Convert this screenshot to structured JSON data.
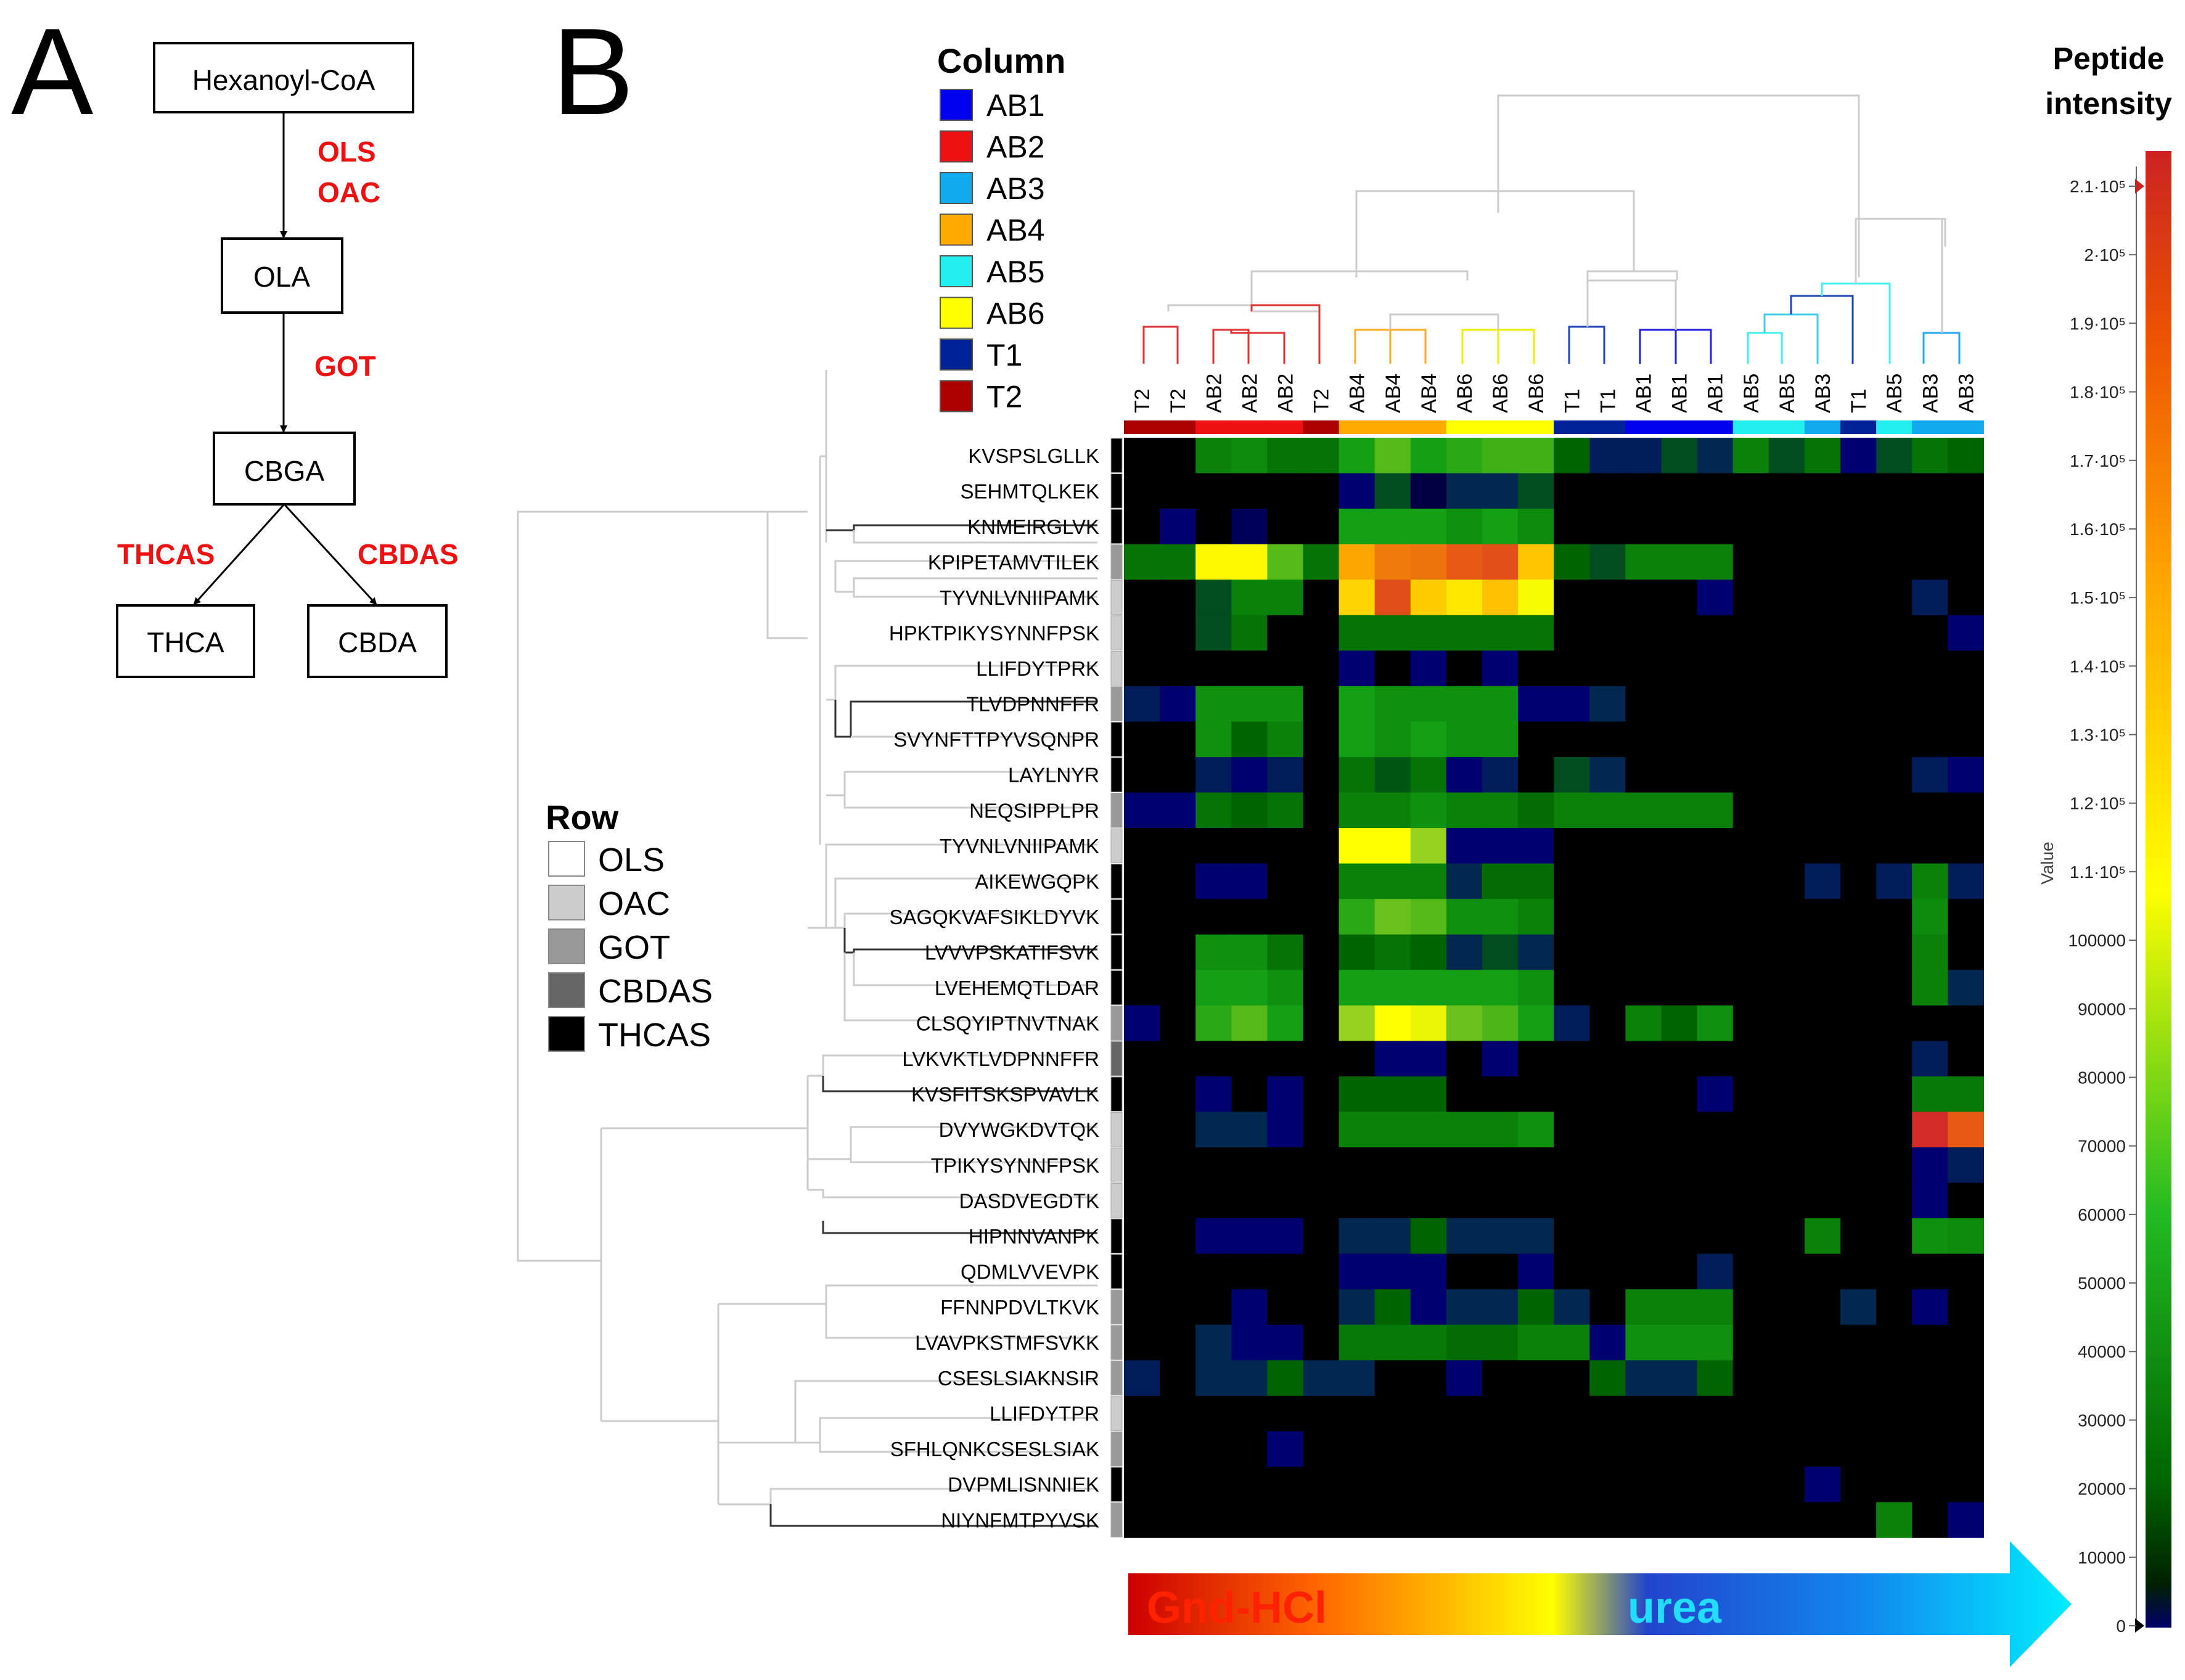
{
  "panel_a": {
    "label": "A",
    "nodes": [
      "Hexanoyl-CoA",
      "OLA",
      "CBGA",
      "THCA",
      "CBDA"
    ],
    "enzymes": {
      "e1": "OLS",
      "e2": "OAC",
      "e3": "GOT",
      "e4": "THCAS",
      "e5": "CBDAS"
    },
    "enzyme_color": "#ee1111"
  },
  "panel_b": {
    "label": "B",
    "column_legend": {
      "title": "Column",
      "items": [
        {
          "label": "AB1",
          "color": "#0000ee"
        },
        {
          "label": "AB2",
          "color": "#ee1111"
        },
        {
          "label": "AB3",
          "color": "#11aaee"
        },
        {
          "label": "AB4",
          "color": "#ffaa00"
        },
        {
          "label": "AB5",
          "color": "#22eeee"
        },
        {
          "label": "AB6",
          "color": "#ffff00"
        },
        {
          "label": "T1",
          "color": "#002299"
        },
        {
          "label": "T2",
          "color": "#aa0000"
        }
      ]
    },
    "row_legend": {
      "title": "Row",
      "items": [
        {
          "label": "OLS",
          "color": "#ffffff"
        },
        {
          "label": "OAC",
          "color": "#cccccc"
        },
        {
          "label": "GOT",
          "color": "#999999"
        },
        {
          "label": "CBDAS",
          "color": "#666666"
        },
        {
          "label": "THCAS",
          "color": "#000000"
        }
      ]
    },
    "scale_title_1": "Peptide",
    "scale_title_2": "intensity",
    "scale_side_label": "Value",
    "arrow_left": "Gnd-HCl",
    "arrow_right": "urea"
  },
  "chart_data": {
    "type": "heatmap",
    "title": "Peptide intensity",
    "columns": [
      "T2",
      "T2",
      "AB2",
      "AB2",
      "AB2",
      "T2",
      "AB4",
      "AB4",
      "AB4",
      "AB6",
      "AB6",
      "AB6",
      "T1",
      "T1",
      "AB1",
      "AB1",
      "AB1",
      "AB5",
      "AB5",
      "AB3",
      "T1",
      "AB5",
      "AB3",
      "AB3"
    ],
    "rows": [
      "KVSPSLGLLK",
      "SEHMTQLKEK",
      "KNMEIRGLVK",
      "KPIPETAMVTILEK",
      "TYVNLVNIIPAMK",
      "HPKTPIKYSYNNFPSK",
      "LLIFDYTPRK",
      "TLVDPNNFFR",
      "SVYNFTTPYVSQNPR",
      "LAYLNYR",
      "NEQSIPPLPR",
      "TYVNLVNIIPAMK",
      "AIKEWGQPK",
      "SAGQKVAFSIKLDYVK",
      "LVVVPSKATIFSVK",
      "LVEHEMQTLDAR",
      "CLSQYIPTNVTNAK",
      "LVKVKTLVDPNNFFR",
      "KVSFITSKSPVAVLK",
      "DVYWGKDVTQK",
      "TPIKYSYNNFPSK",
      "DASDVEGDTK",
      "HIPNNVANPK",
      "QDMLVVEVPK",
      "FFNNPDVLTKVK",
      "LVAVPKSTMFSVKK",
      "CSESLSIAKNSIR",
      "LLIFDYTPR",
      "SFHLQNKCSESLSIAK",
      "DVPMLISNNIEK",
      "NIYNFMTPYVSK"
    ],
    "row_groups": [
      "THCAS",
      "THCAS",
      "THCAS",
      "GOT",
      "OAC",
      "OAC",
      "OAC",
      "GOT",
      "THCAS",
      "THCAS",
      "GOT",
      "OAC",
      "THCAS",
      "THCAS",
      "THCAS",
      "THCAS",
      "GOT",
      "CBDAS",
      "THCAS",
      "OAC",
      "OAC",
      "OAC",
      "THCAS",
      "THCAS",
      "GOT",
      "GOT",
      "GOT",
      "OAC",
      "GOT",
      "THCAS",
      "GOT"
    ],
    "values": [
      [
        0,
        0,
        35000,
        38000,
        30000,
        30000,
        45000,
        60000,
        45000,
        50000,
        55000,
        55000,
        25000,
        10000,
        10000,
        20000,
        12000,
        35000,
        20000,
        30000,
        5000,
        20000,
        30000,
        25000
      ],
      [
        0,
        0,
        0,
        0,
        0,
        0,
        5000,
        20000,
        3000,
        12000,
        12000,
        20000,
        0,
        0,
        0,
        0,
        0,
        0,
        0,
        0,
        0,
        0,
        0,
        0
      ],
      [
        0,
        5000,
        0,
        4000,
        0,
        0,
        45000,
        45000,
        45000,
        40000,
        45000,
        38000,
        0,
        0,
        0,
        0,
        0,
        0,
        0,
        0,
        0,
        0,
        0,
        0
      ],
      [
        30000,
        30000,
        102000,
        102000,
        60000,
        30000,
        132000,
        148000,
        150000,
        160000,
        166000,
        120000,
        25000,
        20000,
        35000,
        35000,
        35000,
        0,
        0,
        0,
        0,
        0,
        0,
        0
      ],
      [
        0,
        0,
        20000,
        35000,
        35000,
        0,
        115000,
        168000,
        118000,
        108000,
        122000,
        98000,
        0,
        0,
        0,
        0,
        5000,
        0,
        0,
        0,
        0,
        0,
        10000,
        0
      ],
      [
        0,
        0,
        20000,
        30000,
        0,
        0,
        30000,
        30000,
        30000,
        30000,
        30000,
        30000,
        0,
        0,
        0,
        0,
        0,
        0,
        0,
        0,
        0,
        0,
        0,
        5000
      ],
      [
        0,
        0,
        0,
        0,
        0,
        0,
        5000,
        0,
        5000,
        0,
        5000,
        0,
        0,
        0,
        0,
        0,
        0,
        0,
        0,
        0,
        0,
        0,
        0,
        0
      ],
      [
        10000,
        5000,
        40000,
        40000,
        40000,
        0,
        45000,
        40000,
        40000,
        40000,
        40000,
        5000,
        5000,
        12000,
        0,
        0,
        0,
        0,
        0,
        0,
        0,
        0,
        0,
        0
      ],
      [
        0,
        0,
        40000,
        25000,
        35000,
        0,
        45000,
        40000,
        45000,
        40000,
        40000,
        0,
        0,
        0,
        0,
        0,
        0,
        0,
        0,
        0,
        0,
        0,
        0,
        0
      ],
      [
        0,
        0,
        10000,
        5000,
        10000,
        0,
        30000,
        22000,
        30000,
        5000,
        10000,
        0,
        20000,
        12000,
        0,
        0,
        0,
        0,
        0,
        0,
        0,
        0,
        10000,
        5000
      ],
      [
        5000,
        5000,
        30000,
        25000,
        30000,
        0,
        35000,
        35000,
        40000,
        35000,
        35000,
        28000,
        35000,
        35000,
        35000,
        35000,
        35000,
        0,
        0,
        0,
        0,
        0,
        0,
        0
      ],
      [
        0,
        0,
        0,
        0,
        0,
        0,
        100000,
        100000,
        75000,
        5000,
        5000,
        5000,
        0,
        0,
        0,
        0,
        0,
        0,
        0,
        0,
        0,
        0,
        0,
        0
      ],
      [
        0,
        0,
        5000,
        5000,
        0,
        0,
        35000,
        35000,
        35000,
        12000,
        28000,
        28000,
        0,
        0,
        0,
        0,
        0,
        0,
        0,
        10000,
        0,
        10000,
        35000,
        10000
      ],
      [
        0,
        0,
        0,
        0,
        0,
        0,
        50000,
        65000,
        60000,
        40000,
        40000,
        35000,
        0,
        0,
        0,
        0,
        0,
        0,
        0,
        0,
        0,
        0,
        38000,
        0
      ],
      [
        0,
        0,
        40000,
        40000,
        30000,
        0,
        25000,
        30000,
        25000,
        12000,
        20000,
        12000,
        0,
        0,
        0,
        0,
        0,
        0,
        0,
        0,
        0,
        0,
        35000,
        0
      ],
      [
        0,
        0,
        45000,
        45000,
        40000,
        0,
        45000,
        45000,
        45000,
        45000,
        45000,
        40000,
        0,
        0,
        0,
        0,
        0,
        0,
        0,
        0,
        0,
        0,
        35000,
        12000
      ],
      [
        5000,
        0,
        50000,
        60000,
        45000,
        0,
        75000,
        100000,
        95000,
        65000,
        58000,
        45000,
        10000,
        0,
        35000,
        25000,
        40000,
        0,
        0,
        0,
        0,
        0,
        0,
        0
      ],
      [
        0,
        0,
        0,
        0,
        0,
        0,
        0,
        5000,
        5000,
        0,
        5000,
        0,
        0,
        0,
        0,
        0,
        0,
        0,
        0,
        0,
        0,
        0,
        10000,
        0
      ],
      [
        0,
        0,
        5000,
        0,
        5000,
        0,
        25000,
        25000,
        25000,
        0,
        0,
        0,
        0,
        0,
        0,
        0,
        5000,
        0,
        0,
        0,
        0,
        0,
        32000,
        32000
      ],
      [
        0,
        0,
        12000,
        12000,
        5000,
        0,
        35000,
        35000,
        35000,
        35000,
        35000,
        40000,
        0,
        0,
        0,
        0,
        0,
        0,
        0,
        0,
        0,
        0,
        188000,
        160000
      ],
      [
        0,
        0,
        0,
        0,
        0,
        0,
        0,
        0,
        0,
        0,
        0,
        0,
        0,
        0,
        0,
        0,
        0,
        0,
        0,
        0,
        0,
        0,
        5000,
        10000
      ],
      [
        0,
        0,
        0,
        0,
        0,
        0,
        0,
        0,
        0,
        0,
        0,
        0,
        0,
        0,
        0,
        0,
        0,
        0,
        0,
        0,
        0,
        0,
        5000,
        0
      ],
      [
        0,
        0,
        5000,
        5000,
        5000,
        0,
        12000,
        12000,
        25000,
        12000,
        12000,
        12000,
        0,
        0,
        0,
        0,
        0,
        0,
        0,
        35000,
        0,
        0,
        40000,
        38000
      ],
      [
        0,
        0,
        0,
        0,
        0,
        0,
        5000,
        5000,
        5000,
        0,
        0,
        5000,
        0,
        0,
        0,
        0,
        10000,
        0,
        0,
        0,
        0,
        0,
        0,
        0
      ],
      [
        0,
        0,
        0,
        5000,
        0,
        0,
        12000,
        25000,
        5000,
        12000,
        12000,
        25000,
        12000,
        0,
        35000,
        35000,
        35000,
        0,
        0,
        0,
        12000,
        0,
        5000,
        0
      ],
      [
        0,
        0,
        12000,
        5000,
        5000,
        0,
        32000,
        32000,
        32000,
        28000,
        28000,
        35000,
        35000,
        5000,
        40000,
        40000,
        40000,
        0,
        0,
        0,
        0,
        0,
        0,
        0
      ],
      [
        10000,
        0,
        12000,
        12000,
        25000,
        12000,
        12000,
        0,
        0,
        5000,
        0,
        0,
        0,
        25000,
        12000,
        12000,
        25000,
        0,
        0,
        0,
        0,
        0,
        0,
        0
      ],
      [
        0,
        0,
        0,
        0,
        0,
        0,
        0,
        0,
        0,
        0,
        0,
        0,
        0,
        0,
        0,
        0,
        0,
        0,
        0,
        0,
        0,
        0,
        0,
        0
      ],
      [
        0,
        0,
        0,
        0,
        5000,
        0,
        0,
        0,
        0,
        0,
        0,
        0,
        0,
        0,
        0,
        0,
        0,
        0,
        0,
        0,
        0,
        0,
        0,
        0
      ],
      [
        0,
        0,
        0,
        0,
        0,
        0,
        0,
        0,
        0,
        0,
        0,
        0,
        0,
        0,
        0,
        0,
        0,
        0,
        0,
        5000,
        0,
        0,
        0,
        0
      ],
      [
        0,
        0,
        0,
        0,
        0,
        0,
        0,
        0,
        0,
        0,
        0,
        0,
        0,
        0,
        0,
        0,
        0,
        0,
        0,
        0,
        0,
        35000,
        0,
        5000
      ]
    ],
    "color_scale": {
      "min": 0,
      "max": 210000
    },
    "scale_ticks": [
      "0",
      "10000",
      "20000",
      "30000",
      "40000",
      "50000",
      "60000",
      "70000",
      "80000",
      "90000",
      "100000",
      "1.1·10⁵",
      "1.2·10⁵",
      "1.3·10⁵",
      "1.4·10⁵",
      "1.5·10⁵",
      "1.6·10⁵",
      "1.7·10⁵",
      "1.8·10⁵",
      "1.9·10⁵",
      "2·10⁵",
      "2.1·10⁵"
    ],
    "scale_tick_values": [
      0,
      10000,
      20000,
      30000,
      40000,
      50000,
      60000,
      70000,
      80000,
      90000,
      100000,
      110000,
      120000,
      130000,
      140000,
      150000,
      160000,
      170000,
      180000,
      190000,
      200000,
      210000
    ]
  }
}
